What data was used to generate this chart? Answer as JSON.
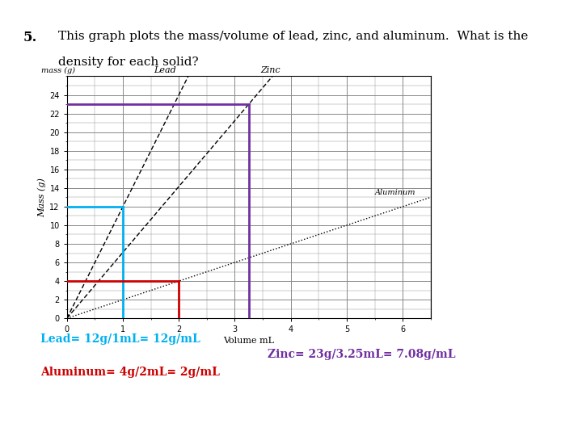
{
  "title_number": "5.",
  "title_line1": "This graph plots the mass/volume of lead, zinc, and aluminum.  What is the",
  "title_line2": "density for each solid?",
  "xlabel": "Volume mL",
  "ylabel": "Mass (g)",
  "xlim": [
    0,
    6.5
  ],
  "ylim": [
    0,
    26
  ],
  "xticks": [
    0,
    1,
    2,
    3,
    4,
    5,
    6
  ],
  "yticks": [
    0,
    2,
    4,
    6,
    8,
    10,
    12,
    14,
    16,
    18,
    20,
    22,
    24
  ],
  "lead_slope": 12,
  "zinc_slope": 7.08,
  "aluminum_slope": 2,
  "blue_h_line_y": 12,
  "blue_h_line_x": [
    0,
    1
  ],
  "blue_v_line_x": 1,
  "blue_v_line_y": [
    0,
    12
  ],
  "blue_color": "#00b0f0",
  "purple_h_line_y": 23,
  "purple_h_line_x": [
    0,
    3.25
  ],
  "purple_v_line_x": 3.25,
  "purple_v_line_y": [
    0,
    23
  ],
  "purple_color": "#7030a0",
  "red_h_line_y": 4,
  "red_h_line_x": [
    0,
    2
  ],
  "red_v_line_x": 2,
  "red_v_line_y": [
    0,
    4
  ],
  "red_color": "#cc0000",
  "annotation_lead": "Lead= 12g/1mL= 12g/mL",
  "annotation_zinc": "Zinc= 23g/3.25mL= 7.08g/mL",
  "annotation_aluminum": "Aluminum= 4g/2mL= 2g/mL",
  "annotation_lead_color": "#00b0f0",
  "annotation_zinc_color": "#7030a0",
  "annotation_aluminum_color": "#cc0000",
  "grid_color": "#888888",
  "white_bg": "#ffffff",
  "gray_bg": "#8fa0a0",
  "card_bg": "#f5f5f5"
}
